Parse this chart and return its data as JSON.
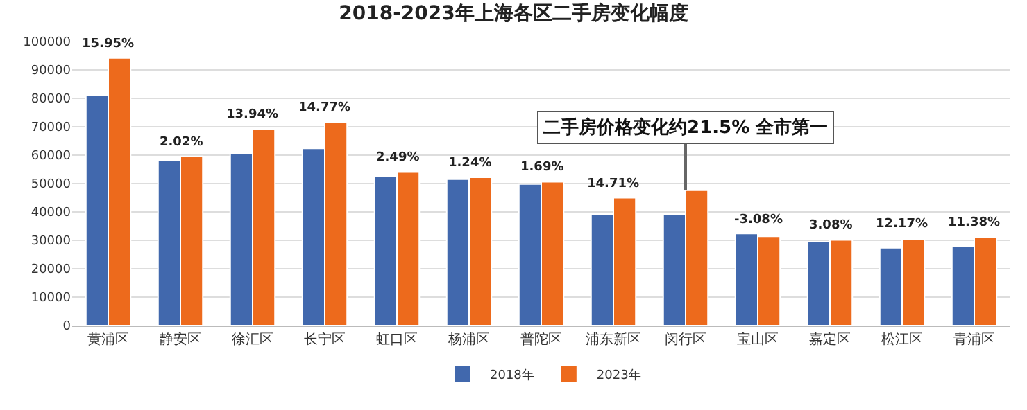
{
  "chart_data": {
    "type": "bar",
    "title": "2018-2023年上海各区二手房变化幅度",
    "categories": [
      "黄浦区",
      "静安区",
      "徐汇区",
      "长宁区",
      "虹口区",
      "杨浦区",
      "普陀区",
      "浦东新区",
      "闵行区",
      "宝山区",
      "嘉定区",
      "松江区",
      "青浦区"
    ],
    "series": [
      {
        "name": "2018年",
        "color": "#4168ad",
        "values": [
          81000,
          58200,
          60600,
          62400,
          52700,
          51500,
          49800,
          39200,
          39200,
          32400,
          29500,
          27400,
          27900
        ]
      },
      {
        "name": "2023年",
        "color": "#ed6a1c",
        "values": [
          94200,
          59600,
          69200,
          71600,
          54000,
          52200,
          50600,
          45000,
          47600,
          31400,
          30100,
          30500,
          31000
        ]
      }
    ],
    "ylim": [
      0,
      100000
    ],
    "yticks": [
      0,
      10000,
      20000,
      30000,
      40000,
      50000,
      60000,
      70000,
      80000,
      90000,
      100000
    ],
    "grid": "y",
    "legend": "bottom",
    "annotations": [
      {
        "text": "15.95%",
        "x": "黄浦区",
        "y": 94200
      },
      {
        "text": "2.02%",
        "x": "静安区",
        "y": 59600
      },
      {
        "text": "13.94%",
        "x": "徐汇区",
        "y": 69200
      },
      {
        "text": "14.77%",
        "x": "长宁区",
        "y": 71600
      },
      {
        "text": "2.49%",
        "x": "虹口区",
        "y": 54000
      },
      {
        "text": "1.24%",
        "x": "杨浦区",
        "y": 52200
      },
      {
        "text": "1.69%",
        "x": "普陀区",
        "y": 50600
      },
      {
        "text": "14.71%",
        "x": "浦东新区",
        "y": 45000
      },
      {
        "text": "二手房价格变化约21.5% 全市第一",
        "x": "闵行区",
        "y": 47600
      },
      {
        "text": "-3.08%",
        "x": "宝山区",
        "y": 32400
      },
      {
        "text": "3.08%",
        "x": "嘉定区",
        "y": 30100
      },
      {
        "text": "12.17%",
        "x": "松江区",
        "y": 30500
      },
      {
        "text": "11.38%",
        "x": "青浦区",
        "y": 31000
      }
    ]
  }
}
